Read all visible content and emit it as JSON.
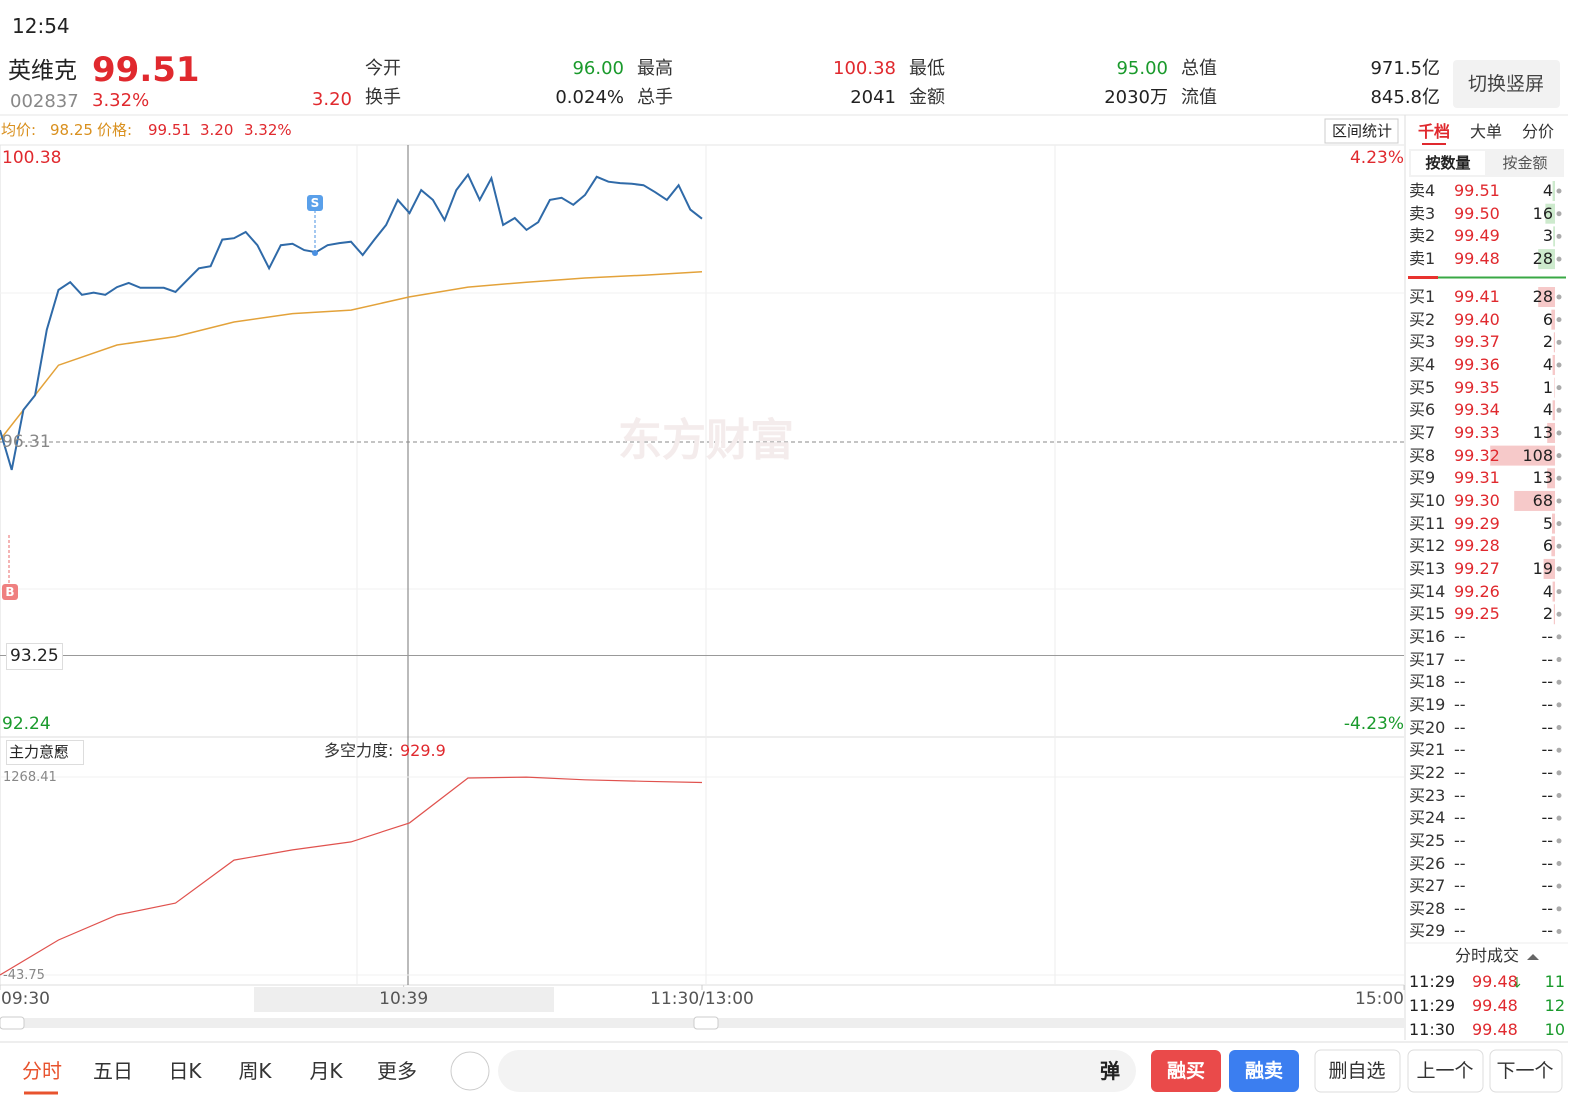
{
  "status": {
    "time": "12:54"
  },
  "header": {
    "name": "英维克",
    "price": "99.51",
    "code": "002837",
    "change_pct": "3.32%",
    "change": "3.20",
    "stats": [
      [
        {
          "label": "今开",
          "value": "96.00"
        },
        {
          "label": "最高",
          "value": "100.38"
        },
        {
          "label": "最低",
          "value": "95.00"
        },
        {
          "label": "总值",
          "value": "971.5亿"
        }
      ],
      [
        {
          "label": "换手",
          "value": "0.024%"
        },
        {
          "label": "总手",
          "value": "2041"
        },
        {
          "label": "金额",
          "value": "2030万"
        },
        {
          "label": "流值",
          "value": "845.8亿"
        }
      ]
    ],
    "switch_button": "切换竖屏"
  },
  "info_bar": {
    "avg_label": "均价:",
    "avg": "98.25",
    "price_label": "价格:",
    "price": "99.51",
    "change": "3.20",
    "change_pct": "3.32%",
    "range_button": "区间统计"
  },
  "intraday": {
    "ylim": [
      92.24,
      100.38
    ],
    "yticks": [
      100.38,
      96.31,
      92.24
    ],
    "pct_ticks": [
      "4.23%",
      "-4.23%"
    ],
    "cursor_value": 93.25,
    "xlim": [
      0,
      240
    ],
    "xticks": [
      {
        "value": 0,
        "label": "09:30"
      },
      {
        "value": 69,
        "label": "10:39"
      },
      {
        "value": 120,
        "label": "11:30/13:00"
      },
      {
        "value": 240,
        "label": "15:00"
      }
    ],
    "price": {
      "color": "#2f6aa8",
      "x": [
        0,
        2,
        4,
        6,
        8,
        10,
        12,
        14,
        16,
        18,
        20,
        22,
        24,
        26,
        28,
        30,
        32,
        34,
        36,
        38,
        40,
        42,
        44,
        46,
        48,
        50,
        52,
        54,
        56,
        58,
        60,
        62,
        64,
        66,
        68,
        70,
        72,
        74,
        76,
        78,
        80,
        82,
        84,
        86,
        88,
        90,
        92,
        94,
        96,
        98,
        100,
        102,
        104,
        106,
        108,
        110,
        112,
        114,
        116,
        118,
        120
      ],
      "values": [
        96.48,
        95.91,
        96.77,
        96.98,
        97.92,
        98.49,
        98.6,
        98.42,
        98.45,
        98.42,
        98.53,
        98.59,
        98.52,
        98.52,
        98.52,
        98.46,
        98.63,
        98.8,
        98.83,
        99.21,
        99.23,
        99.32,
        99.13,
        98.8,
        99.13,
        99.15,
        99.06,
        99.03,
        99.13,
        99.16,
        99.18,
        98.99,
        99.21,
        99.42,
        99.78,
        99.59,
        99.92,
        99.78,
        99.49,
        99.92,
        100.14,
        99.78,
        100.09,
        99.42,
        99.52,
        99.35,
        99.46,
        99.78,
        99.81,
        99.71,
        99.85,
        100.11,
        100.04,
        100.02,
        100.01,
        99.99,
        99.89,
        99.78,
        99.99,
        99.64,
        99.51
      ]
    },
    "avg": {
      "color": "#e3a23a",
      "x": [
        0,
        10,
        20,
        30,
        40,
        50,
        60,
        70,
        80,
        90,
        100,
        110,
        120
      ],
      "values": [
        96.34,
        97.41,
        97.7,
        97.82,
        98.03,
        98.15,
        98.2,
        98.39,
        98.53,
        98.6,
        98.66,
        98.7,
        98.75
      ]
    },
    "s_marker": "S",
    "b_marker": "B",
    "watermark": "东方财富"
  },
  "indicator": {
    "name": "主力意愿",
    "label": "多空力度:",
    "value": "929.9",
    "ylim": [
      -43.75,
      1268.41
    ],
    "yticks": [
      1268.41,
      -43.75
    ],
    "series": {
      "color": "#e0524e",
      "x": [
        0,
        10,
        20,
        30,
        40,
        50,
        60,
        70,
        80,
        90,
        100,
        110,
        120
      ],
      "values": [
        -43.75,
        188,
        354,
        433,
        718,
        785,
        838,
        964,
        1262,
        1268,
        1250,
        1240,
        1232
      ]
    }
  },
  "order_book": {
    "tabs": [
      "千档",
      "大单",
      "分价"
    ],
    "sub_tabs": [
      "按数量",
      "按金额"
    ],
    "asks": [
      {
        "label": "卖4",
        "price": "99.51",
        "qty": 4
      },
      {
        "label": "卖3",
        "price": "99.50",
        "qty": 16
      },
      {
        "label": "卖2",
        "price": "99.49",
        "qty": 3
      },
      {
        "label": "卖1",
        "price": "99.48",
        "qty": 28
      }
    ],
    "bids": [
      {
        "label": "买1",
        "price": "99.41",
        "qty": 28
      },
      {
        "label": "买2",
        "price": "99.40",
        "qty": 6
      },
      {
        "label": "买3",
        "price": "99.37",
        "qty": 2
      },
      {
        "label": "买4",
        "price": "99.36",
        "qty": 4
      },
      {
        "label": "买5",
        "price": "99.35",
        "qty": 1
      },
      {
        "label": "买6",
        "price": "99.34",
        "qty": 4
      },
      {
        "label": "买7",
        "price": "99.33",
        "qty": 13
      },
      {
        "label": "买8",
        "price": "99.32",
        "qty": 108
      },
      {
        "label": "买9",
        "price": "99.31",
        "qty": 13
      },
      {
        "label": "买10",
        "price": "99.30",
        "qty": 68
      },
      {
        "label": "买11",
        "price": "99.29",
        "qty": 5
      },
      {
        "label": "买12",
        "price": "99.28",
        "qty": 6
      },
      {
        "label": "买13",
        "price": "99.27",
        "qty": 19
      },
      {
        "label": "买14",
        "price": "99.26",
        "qty": 4
      },
      {
        "label": "买15",
        "price": "99.25",
        "qty": 2
      },
      {
        "label": "买16",
        "price": "--",
        "qty": "--"
      },
      {
        "label": "买17",
        "price": "--",
        "qty": "--"
      },
      {
        "label": "买18",
        "price": "--",
        "qty": "--"
      },
      {
        "label": "买19",
        "price": "--",
        "qty": "--"
      },
      {
        "label": "买20",
        "price": "--",
        "qty": "--"
      },
      {
        "label": "买21",
        "price": "--",
        "qty": "--"
      },
      {
        "label": "买22",
        "price": "--",
        "qty": "--"
      },
      {
        "label": "买23",
        "price": "--",
        "qty": "--"
      },
      {
        "label": "买24",
        "price": "--",
        "qty": "--"
      },
      {
        "label": "买25",
        "price": "--",
        "qty": "--"
      },
      {
        "label": "买26",
        "price": "--",
        "qty": "--"
      },
      {
        "label": "买27",
        "price": "--",
        "qty": "--"
      },
      {
        "label": "买28",
        "price": "--",
        "qty": "--"
      },
      {
        "label": "买29",
        "price": "--",
        "qty": "--"
      }
    ]
  },
  "trades": {
    "title": "分时成交",
    "rows": [
      {
        "time": "11:29",
        "price": "99.48",
        "volume": "11"
      },
      {
        "time": "11:29",
        "price": "99.48",
        "volume": "12"
      },
      {
        "time": "11:30",
        "price": "99.48",
        "volume": "10"
      }
    ]
  },
  "bottom_bar": {
    "tabs": [
      "分时",
      "五日",
      "日K",
      "周K",
      "月K",
      "更多"
    ],
    "danmu": "弹",
    "buttons": [
      "融买",
      "融卖",
      "删自选",
      "上一个",
      "下一个"
    ]
  }
}
